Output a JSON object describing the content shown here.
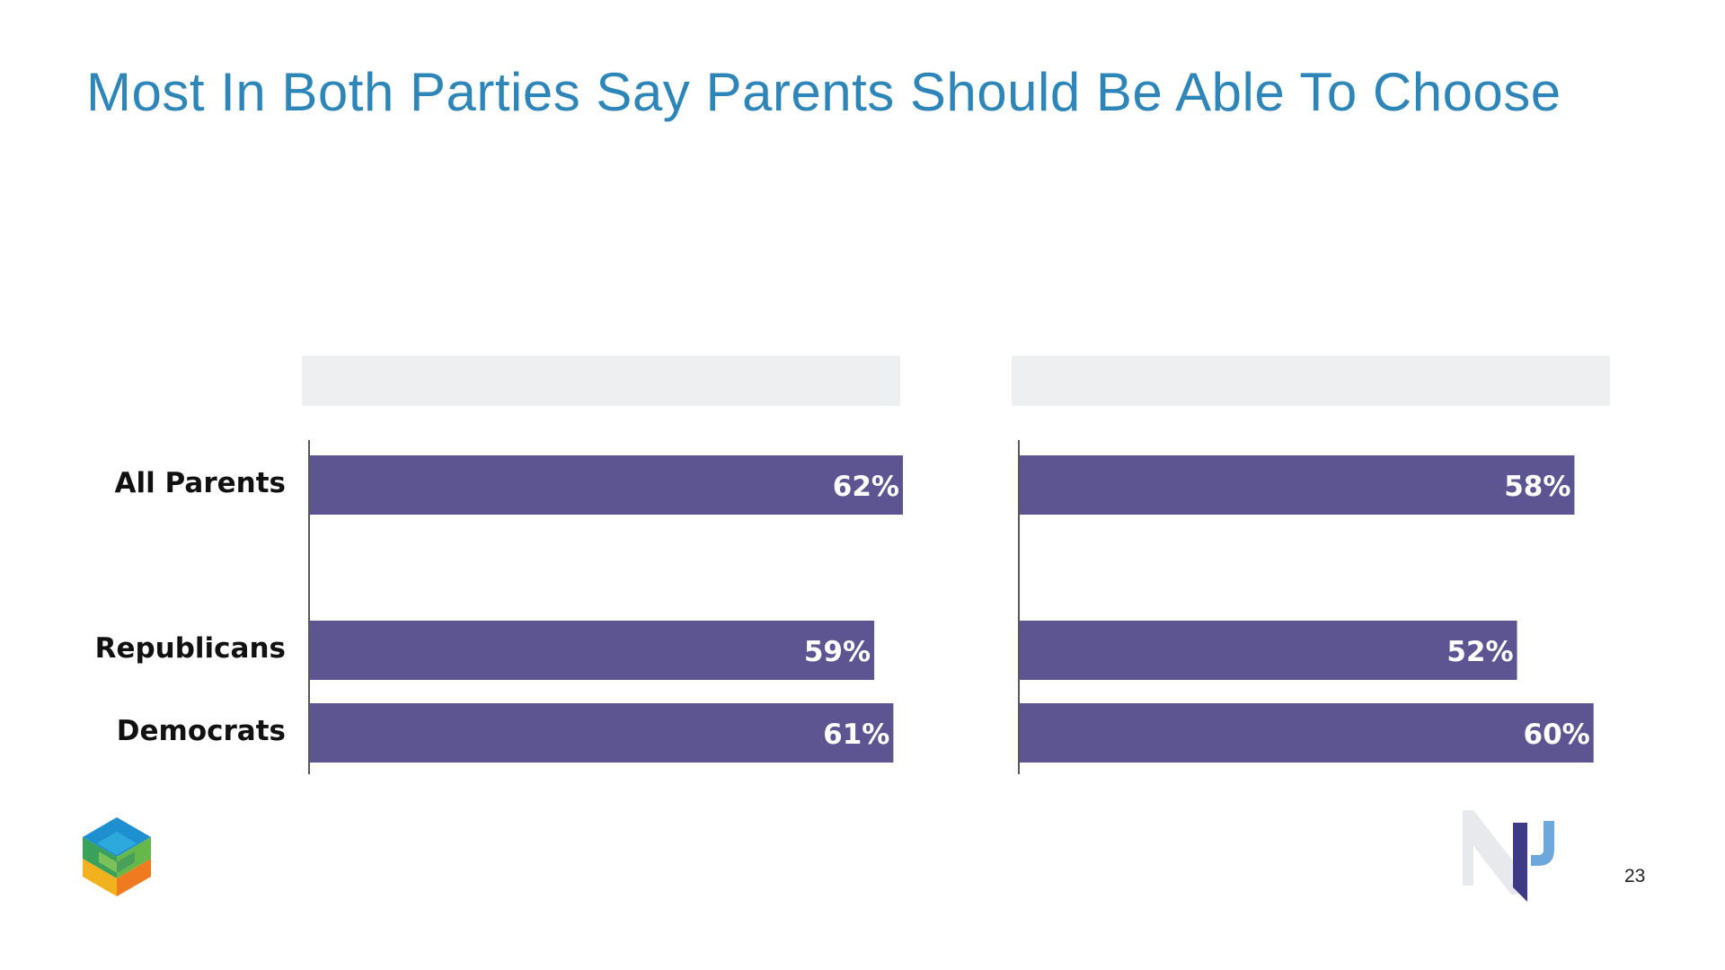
{
  "page": {
    "title": "Most In Both Parties Say Parents Should Be Able To Choose",
    "page_number": "23"
  },
  "logos": {
    "left": "hexagon-cube-logo",
    "right": "np-logo"
  },
  "colors": {
    "title": "#2e86b8",
    "bar": "#5c5591",
    "panel_header": "#eeeff0",
    "label_text": "#111111",
    "value_text": "#ffffff"
  },
  "chart_data": [
    {
      "type": "bar",
      "orientation": "horizontal",
      "title": "",
      "categories": [
        "All Parents",
        "Republicans",
        "Democrats"
      ],
      "values": [
        62,
        59,
        61
      ],
      "value_labels": [
        "62%",
        "59%",
        "61%"
      ],
      "xlim": [
        0,
        62
      ]
    },
    {
      "type": "bar",
      "orientation": "horizontal",
      "title": "",
      "categories": [
        "All Parents",
        "Republicans",
        "Democrats"
      ],
      "values": [
        58,
        52,
        60
      ],
      "value_labels": [
        "58%",
        "52%",
        "60%"
      ],
      "xlim": [
        0,
        62
      ]
    }
  ]
}
